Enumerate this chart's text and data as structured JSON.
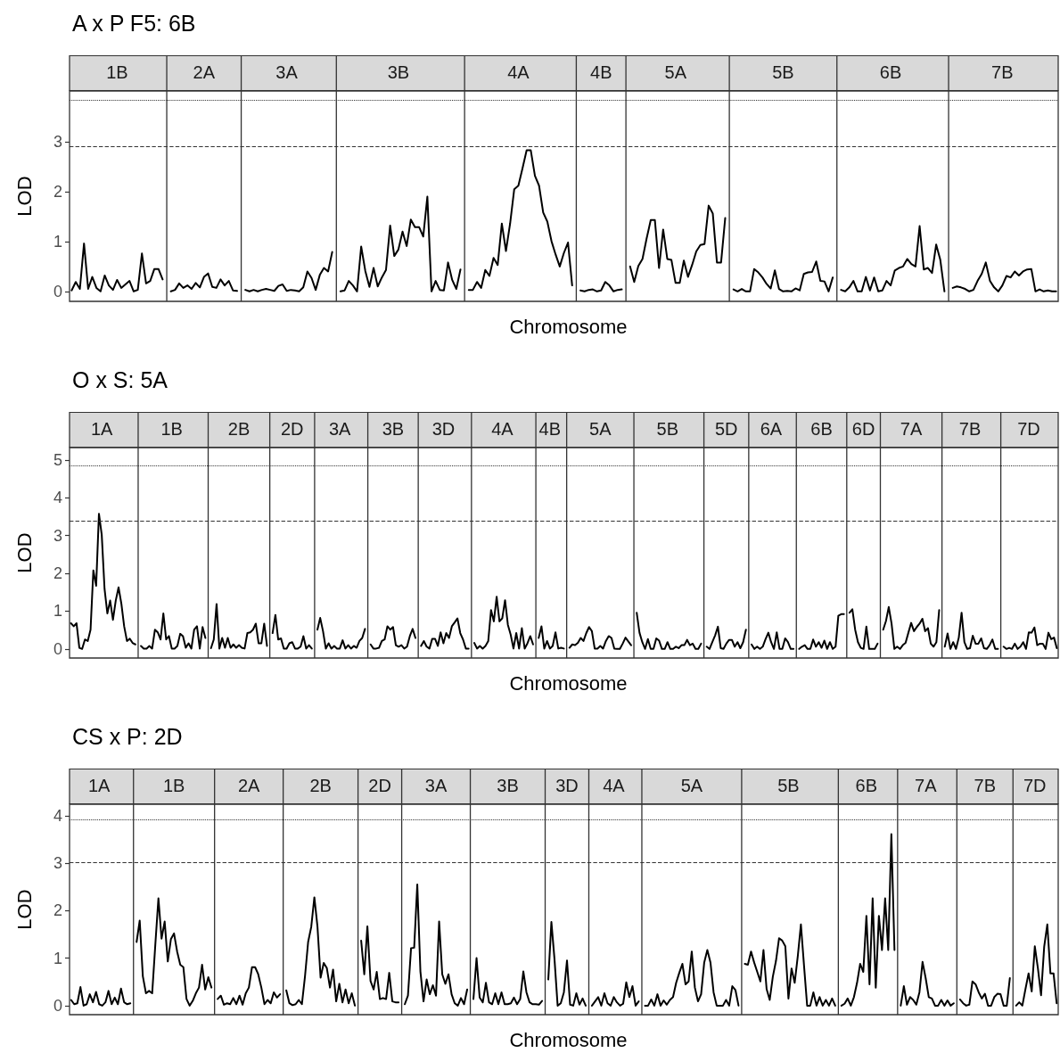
{
  "chart_data": [
    {
      "type": "line",
      "title": "A x P F5: 6B",
      "xlabel": "Chromosome",
      "ylabel": "LOD",
      "ylim": [
        -0.2,
        4.02
      ],
      "yticks": [
        0,
        1,
        2,
        3
      ],
      "ref_lines": [
        {
          "axis": "y",
          "value": 2.91,
          "line_style": "dashed",
          "color": "#333333"
        },
        {
          "axis": "y",
          "value": 3.84,
          "line_style": "dotted",
          "color": "#333333"
        }
      ],
      "categories": [
        null,
        null,
        null,
        null,
        null,
        null,
        null,
        null,
        null,
        null,
        null,
        "1B",
        null,
        null,
        null,
        null,
        null,
        null,
        null,
        null,
        null,
        null,
        null,
        null,
        null,
        null,
        null,
        null,
        null,
        null,
        null,
        null,
        "2A",
        null,
        null,
        null,
        null,
        null,
        null,
        null,
        null,
        null,
        null,
        null,
        null,
        null,
        null,
        null,
        null,
        null,
        null,
        null,
        "3A",
        null,
        null,
        null,
        null,
        null,
        null,
        null,
        null,
        null,
        null,
        null,
        null,
        null,
        null,
        null,
        null,
        null,
        null,
        null,
        null,
        null,
        null,
        null,
        null,
        null,
        null,
        "3B",
        null,
        null,
        null,
        null,
        null,
        null,
        null,
        null,
        null,
        null,
        null,
        null,
        null,
        null,
        null,
        null,
        null,
        null,
        null,
        null,
        null,
        null,
        null,
        null,
        null,
        null,
        null,
        null,
        "4A",
        null,
        null,
        null,
        null,
        null,
        null,
        null,
        null,
        null,
        null,
        null,
        null,
        null,
        null,
        null,
        null,
        null,
        null,
        null,
        "4B",
        null,
        null,
        null,
        null,
        null,
        null,
        null,
        null,
        null,
        null,
        null,
        null,
        null,
        null,
        null,
        null,
        null,
        "5A",
        null,
        null,
        null,
        null,
        null,
        null,
        null,
        null,
        null,
        null,
        null,
        null,
        null,
        null,
        null,
        null,
        null,
        null,
        null,
        null,
        null,
        null,
        null,
        null,
        null,
        "5B",
        null,
        null,
        null,
        null,
        null,
        null,
        null,
        null,
        null,
        null,
        null,
        null,
        null,
        null,
        null,
        null,
        null,
        null,
        null,
        null,
        null,
        null,
        null,
        null,
        null,
        "6B",
        null,
        null,
        null,
        null,
        null,
        null,
        null,
        null,
        null,
        null,
        null,
        null,
        null,
        null,
        null,
        null,
        null,
        null,
        null,
        null,
        null,
        null,
        null,
        null,
        null,
        null,
        "7B",
        null,
        null,
        null,
        null,
        null,
        null,
        null,
        null,
        null,
        null,
        null,
        null,
        null
      ],
      "color": "#000000",
      "values": [
        0.02,
        0.19,
        0.05,
        0.96,
        0.05,
        0.29,
        0.07,
        0,
        0.32,
        0.12,
        0.03,
        0.23,
        0.07,
        0.14,
        0.21,
        0,
        0.03,
        0.76,
        0.16,
        0.21,
        0.45,
        0.45,
        0.24,
        null,
        0,
        0.03,
        0.16,
        0.07,
        0.12,
        0.05,
        0.17,
        0.08,
        0.29,
        0.36,
        0.09,
        0.07,
        0.24,
        0.12,
        0.21,
        0.02,
        0.01,
        null,
        0.03,
        0,
        0.03,
        0,
        0.03,
        0.05,
        0.03,
        0.01,
        0.11,
        0.14,
        0.01,
        0.03,
        0.02,
        0,
        0.08,
        0.4,
        0.27,
        0.03,
        0.33,
        0.47,
        0.4,
        0.79,
        null,
        0,
        0.02,
        0.21,
        0.12,
        0,
        0.9,
        0.41,
        0.09,
        0.47,
        0.1,
        0.28,
        0.43,
        1.32,
        0.71,
        0.84,
        1.2,
        0.91,
        1.44,
        1.29,
        1.29,
        1.1,
        1.9,
        0,
        0.21,
        0.03,
        0.02,
        0.58,
        0.23,
        0.05,
        0.44,
        null,
        0.03,
        0.03,
        0.19,
        0.07,
        0.43,
        0.31,
        0.67,
        0.53,
        1.36,
        0.81,
        1.36,
        2.05,
        2.12,
        2.47,
        2.83,
        2.83,
        2.32,
        2.12,
        1.58,
        1.4,
        1.01,
        0.74,
        0.5,
        0.77,
        0.98,
        0.12,
        null,
        0.02,
        0,
        0.03,
        0.04,
        0,
        0.02,
        0.19,
        0.12,
        0,
        0.03,
        0.04,
        null,
        0.5,
        0.19,
        0.51,
        0.65,
        1.06,
        1.43,
        1.43,
        0.47,
        1.24,
        0.65,
        0.63,
        0.17,
        0.17,
        0.62,
        0.29,
        0.53,
        0.8,
        0.93,
        0.95,
        1.72,
        1.56,
        0.58,
        0.58,
        1.47,
        null,
        0.04,
        0,
        0.05,
        0,
        0,
        0.45,
        0.38,
        0.28,
        0.15,
        0.06,
        0.42,
        0.05,
        0,
        0.01,
        0,
        0.06,
        0.02,
        0.35,
        0.38,
        0.39,
        0.6,
        0.21,
        0.2,
        0,
        0.28,
        null,
        0.03,
        0,
        0.08,
        0.21,
        0,
        0,
        0.29,
        0.02,
        0.28,
        0,
        0.02,
        0.21,
        0.12,
        0.42,
        0.47,
        0.5,
        0.65,
        0.55,
        0.5,
        1.31,
        0.44,
        0.47,
        0.37,
        0.94,
        0.63,
        0,
        null,
        0.07,
        0.1,
        0.08,
        0.05,
        0,
        0.03,
        0.21,
        0.35,
        0.58,
        0.21,
        0.08,
        0,
        0.12,
        0.31,
        0.28,
        0.4,
        0.32,
        0.4,
        0.44,
        0.45,
        0,
        0.04,
        0,
        0.02,
        0,
        0
      ]
    },
    {
      "type": "line",
      "title": "O x S: 5A",
      "xlabel": "Chromosome",
      "ylabel": "LOD",
      "ylim": [
        -0.24,
        5.33
      ],
      "yticks": [
        0,
        1,
        2,
        3,
        4,
        5
      ],
      "ref_lines": [
        {
          "axis": "y",
          "value": 3.39,
          "line_style": "dashed",
          "color": "#333333"
        },
        {
          "axis": "y",
          "value": 4.86,
          "line_style": "dotted",
          "color": "#333333"
        }
      ],
      "categories": [
        null,
        null,
        null,
        null,
        null,
        null,
        null,
        null,
        null,
        null,
        null,
        "1A",
        null,
        null,
        null,
        null,
        null,
        null,
        null,
        null,
        null,
        null,
        null,
        null,
        null,
        null,
        null,
        null,
        null,
        null,
        null,
        null,
        null,
        null,
        null,
        null,
        "1B",
        null,
        null,
        null,
        null,
        null,
        null,
        null,
        null,
        null,
        null,
        null,
        null,
        null,
        null,
        null,
        null,
        null,
        null,
        null,
        null,
        null,
        null,
        null,
        "2B",
        null,
        null,
        null,
        null,
        null,
        null,
        null,
        null,
        null,
        null,
        null,
        null,
        null,
        null,
        null,
        null,
        null,
        null,
        "2D",
        null,
        null,
        null,
        null,
        null,
        null,
        null,
        null,
        null,
        null,
        null,
        null,
        null,
        null,
        null,
        null,
        "3A",
        null,
        null,
        null,
        null,
        null,
        null,
        null,
        null,
        null,
        null,
        null,
        null,
        null,
        null,
        null,
        null,
        null,
        null,
        "3B",
        null,
        null,
        null,
        null,
        null,
        null,
        null,
        null,
        null,
        null,
        null,
        null,
        null,
        null,
        null,
        null,
        null,
        "3D",
        null,
        null,
        null,
        null,
        null,
        null,
        null,
        null,
        null,
        null,
        null,
        null,
        null,
        null,
        null,
        null,
        null,
        null,
        null,
        null,
        "4A",
        null,
        null,
        null,
        null,
        null,
        null,
        null,
        null,
        null,
        null,
        null,
        null,
        null,
        null,
        null,
        null,
        "4B",
        null,
        null,
        null,
        null,
        null,
        null,
        null,
        null,
        null,
        null,
        null,
        null,
        null,
        null,
        null,
        null,
        null,
        "5A",
        null,
        null,
        null,
        null,
        null,
        null,
        null,
        null,
        null,
        null,
        null,
        null,
        null,
        null,
        null,
        null,
        null,
        null,
        null,
        null,
        null,
        null,
        null,
        "5B",
        null,
        null,
        null,
        null,
        null,
        null,
        null,
        null,
        null,
        null,
        null,
        null,
        null,
        null,
        null,
        null,
        null,
        null,
        null,
        null,
        "5D",
        null,
        null,
        null,
        null,
        null,
        null,
        null,
        null,
        null,
        null,
        null,
        null,
        null,
        null,
        null,
        "6A",
        null,
        null,
        null,
        null,
        null,
        null,
        null,
        null,
        null,
        null,
        null,
        null,
        null,
        null,
        null,
        null,
        null,
        "6B",
        null,
        null,
        null,
        null,
        null,
        null,
        null,
        null,
        null,
        null,
        null,
        null,
        null,
        null,
        "6D",
        null,
        null,
        null,
        null,
        null,
        null,
        null,
        null,
        null,
        null,
        null,
        null,
        null,
        null,
        null,
        null,
        "7A",
        null,
        null,
        null,
        null,
        null,
        null,
        null,
        null,
        null,
        null,
        null,
        null,
        null,
        null,
        null,
        null,
        null,
        null,
        null,
        null,
        "7B",
        null,
        null,
        null,
        null,
        null,
        null,
        null,
        null,
        null,
        null,
        null,
        null,
        null,
        null,
        null,
        null,
        null,
        null,
        null,
        null,
        "7D",
        null,
        null,
        null,
        null,
        null,
        null,
        null,
        null,
        null,
        null
      ],
      "color": "#000000",
      "values": [
        0.68,
        0.6,
        0.68,
        0.03,
        0,
        0.25,
        0.21,
        0.51,
        2.08,
        1.67,
        3.58,
        3.02,
        1.59,
        0.94,
        1.28,
        0.77,
        1.28,
        1.63,
        1.2,
        0.6,
        0.21,
        0.27,
        0.16,
        0.12,
        null,
        0.08,
        0.01,
        0.01,
        0.08,
        0.01,
        0.51,
        0.44,
        0.25,
        0.94,
        0.25,
        0.34,
        0.01,
        0.01,
        0.08,
        0.4,
        0.34,
        0.03,
        0.15,
        0.01,
        0.51,
        0.6,
        0.01,
        0.58,
        0.29,
        null,
        0.02,
        0.25,
        1.19,
        0.01,
        0.29,
        0.03,
        0.29,
        0.03,
        0.12,
        0.03,
        0.1,
        0.03,
        0.01,
        0.42,
        0.44,
        0.51,
        0.67,
        0.15,
        0.15,
        0.67,
        0.08,
        null,
        0.42,
        0.9,
        0.25,
        0.28,
        0.01,
        0.01,
        0.15,
        0.18,
        0.01,
        0.01,
        0.06,
        0.34,
        0.01,
        0.1,
        0.01,
        null,
        0.51,
        0.82,
        0.47,
        0.01,
        0.15,
        0.01,
        0.08,
        0.01,
        0.01,
        0.23,
        0.01,
        0.1,
        0.01,
        0.08,
        0.03,
        0.21,
        0.29,
        0.53,
        null,
        0.12,
        0.01,
        0.01,
        0.03,
        0.21,
        0.25,
        0.6,
        0.51,
        0.58,
        0.1,
        0.06,
        0.1,
        0.01,
        0.06,
        0.34,
        0.53,
        0.29,
        null,
        0.08,
        0.21,
        0.06,
        0.01,
        0.27,
        0.27,
        0.08,
        0.44,
        0.15,
        0.42,
        0.29,
        0.6,
        0.7,
        0.81,
        0.42,
        0.25,
        0.01,
        0.01,
        null,
        0.16,
        0.01,
        0.08,
        0.01,
        0.08,
        0.21,
        1.03,
        0.73,
        1.38,
        0.73,
        0.81,
        1.29,
        0.64,
        0.38,
        0.01,
        0.42,
        0.01,
        0.55,
        0.01,
        0.15,
        0.34,
        0.12,
        null,
        0.29,
        0.6,
        0.01,
        0.21,
        0.01,
        0.08,
        0.44,
        0.01,
        0.03,
        0.01,
        null,
        0.03,
        0.12,
        0.1,
        0.16,
        0.29,
        0.21,
        0.42,
        0.58,
        0.47,
        0.01,
        0.01,
        0.08,
        0.01,
        0.21,
        0.34,
        0.29,
        0.01,
        0,
        0,
        0.14,
        0.3,
        0.2,
        0.1,
        null,
        0.96,
        0.43,
        0.18,
        0,
        0.26,
        0,
        0,
        0.28,
        0.22,
        0,
        0,
        0.18,
        0,
        0,
        0.06,
        0.02,
        0.1,
        0.1,
        0.24,
        0.1,
        0.14,
        0,
        0,
        0.14,
        null,
        0.06,
        0,
        0.18,
        0.36,
        0.59,
        0.02,
        0,
        0.14,
        0.24,
        0.24,
        0.06,
        0.18,
        0.02,
        0.18,
        0.51,
        null,
        0.12,
        0,
        0.06,
        0,
        0.06,
        0.26,
        0.43,
        0.18,
        0,
        0.44,
        0,
        0,
        0.28,
        0.18,
        0,
        0,
        null,
        0,
        0.06,
        0.1,
        0,
        0,
        0.25,
        0.06,
        0.18,
        0.03,
        0.22,
        0,
        0.18,
        0,
        0.06,
        0.88,
        0.92,
        0.92,
        null,
        0.96,
        1.05,
        0.51,
        0.18,
        0.03,
        0,
        0.59,
        0,
        0,
        0,
        0.14,
        null,
        0.51,
        0.74,
        1.11,
        0.67,
        0,
        0.06,
        0,
        0.1,
        0.16,
        0.43,
        0.69,
        0.47,
        0.58,
        0.67,
        0.8,
        0.47,
        0.55,
        0.14,
        0.06,
        0.18,
        1.03,
        null,
        0.06,
        0.41,
        0,
        0.18,
        0,
        0.3,
        0.96,
        0.18,
        0,
        0.02,
        0.35,
        0.14,
        0.14,
        0.28,
        0.02,
        0,
        0.1,
        0.25,
        0,
        0,
        null,
        0.06,
        0,
        0.03,
        0,
        0.14,
        0,
        0.06,
        0.18,
        0,
        0.44,
        0.43,
        0.57,
        0.1,
        0.14,
        0.14,
        0,
        0.43,
        0.26,
        0.3,
        0.02
      ]
    },
    {
      "type": "line",
      "title": "CS x P: 2D",
      "xlabel": "Chromosome",
      "ylabel": "LOD",
      "ylim": [
        -0.19,
        4.24
      ],
      "yticks": [
        0,
        1,
        2,
        3,
        4
      ],
      "ref_lines": [
        {
          "axis": "y",
          "value": 3.01,
          "line_style": "dashed",
          "color": "#333333"
        },
        {
          "axis": "y",
          "value": 3.91,
          "line_style": "dotted",
          "color": "#333333"
        }
      ],
      "categories": [
        null,
        null,
        null,
        null,
        null,
        null,
        null,
        null,
        null,
        "1A",
        null,
        null,
        null,
        null,
        null,
        null,
        null,
        null,
        null,
        null,
        null,
        null,
        null,
        null,
        null,
        null,
        null,
        null,
        null,
        null,
        null,
        null,
        null,
        "1B",
        null,
        null,
        null,
        null,
        null,
        null,
        null,
        null,
        null,
        null,
        null,
        null,
        null,
        null,
        null,
        null,
        null,
        null,
        null,
        null,
        null,
        null,
        null,
        "2A",
        null,
        null,
        null,
        null,
        null,
        null,
        null,
        null,
        null,
        null,
        null,
        null,
        null,
        null,
        null,
        null,
        null,
        null,
        null,
        null,
        null,
        null,
        "2B",
        null,
        null,
        null,
        null,
        null,
        null,
        null,
        null,
        null,
        null,
        null,
        null,
        null,
        null,
        null,
        null,
        null,
        null,
        "2D",
        null,
        null,
        null,
        null,
        null,
        null,
        null,
        null,
        null,
        null,
        null,
        null,
        null,
        null,
        null,
        null,
        null,
        "3A",
        null,
        null,
        null,
        null,
        null,
        null,
        null,
        null,
        null,
        null,
        null,
        null,
        null,
        null,
        null,
        null,
        null,
        null,
        null,
        null,
        null,
        null,
        "3B",
        null,
        null,
        null,
        null,
        null,
        null,
        null,
        null,
        null,
        null,
        null,
        null,
        null,
        null,
        null,
        null,
        null,
        null,
        "3D",
        null,
        null,
        null,
        null,
        null,
        null,
        null,
        null,
        null,
        null,
        null,
        null,
        null,
        null,
        "4A",
        null,
        null,
        null,
        null,
        null,
        null,
        null,
        null,
        null,
        null,
        null,
        null,
        null,
        null,
        null,
        null,
        null,
        null,
        null,
        null,
        null,
        null,
        null,
        null,
        "5A",
        null,
        null,
        null,
        null,
        null,
        null,
        null,
        null,
        null,
        null,
        null,
        null,
        null,
        null,
        null,
        null,
        null,
        null,
        null,
        null,
        null,
        null,
        null,
        null,
        null,
        null,
        null,
        null,
        null,
        null,
        "5B",
        null,
        null,
        null,
        null,
        null,
        null,
        null,
        null,
        null,
        null,
        null,
        null,
        null,
        null,
        null,
        null,
        null,
        null,
        null,
        null,
        null,
        null,
        null,
        null,
        "6B",
        null,
        null,
        null,
        null,
        null,
        null,
        null,
        null,
        null,
        null,
        null,
        null,
        null,
        null,
        null,
        null,
        null,
        null,
        "7A",
        null,
        null,
        null,
        null,
        null,
        null,
        null,
        null,
        null,
        null,
        null,
        null,
        null,
        null,
        null,
        null,
        null,
        null,
        "7B",
        null,
        null,
        null,
        null,
        null,
        null,
        null,
        null,
        null,
        null,
        null,
        null,
        null,
        null,
        null,
        "7D",
        null,
        null,
        null,
        null,
        null,
        null,
        null
      ],
      "color": "#000000",
      "values": [
        0.12,
        0.03,
        0.05,
        0.39,
        0,
        0.03,
        0.24,
        0.07,
        0.29,
        0.03,
        0,
        0.07,
        0.31,
        0.03,
        0.17,
        0.03,
        0.36,
        0.07,
        0.03,
        0.05,
        null,
        1.34,
        1.79,
        0.62,
        0.26,
        0.31,
        0.26,
        1.28,
        2.26,
        1.41,
        1.77,
        0.93,
        1.4,
        1.52,
        1.14,
        0.86,
        0.81,
        0.14,
        0,
        0.1,
        0.26,
        0.38,
        0.86,
        0.34,
        0.6,
        0.38,
        null,
        0.14,
        0.21,
        0.02,
        0.05,
        0.03,
        0.16,
        0.03,
        0.21,
        0.02,
        0.26,
        0.38,
        0.81,
        0.81,
        0.66,
        0.38,
        0.03,
        0.12,
        0.05,
        0.28,
        0.17,
        0.24,
        null,
        0.32,
        0.05,
        0.01,
        0.03,
        0.12,
        0.03,
        0.62,
        1.34,
        1.66,
        2.28,
        1.66,
        0.59,
        0.9,
        0.79,
        0.38,
        0.76,
        0.09,
        0.46,
        0.07,
        0.34,
        0.05,
        0.26,
        0,
        null,
        1.37,
        0.66,
        1.67,
        0.52,
        0.34,
        0.71,
        0.14,
        0.16,
        0.14,
        0.69,
        0.09,
        0.07,
        0.07,
        null,
        0.03,
        0.21,
        1.21,
        1.22,
        2.55,
        0.72,
        0.09,
        0.55,
        0.24,
        0.43,
        0.21,
        1.77,
        0.66,
        0.46,
        0.66,
        0.24,
        0.05,
        0,
        0.16,
        0.03,
        0.34,
        null,
        0.14,
        1,
        0.17,
        0.07,
        0.48,
        0.07,
        0.03,
        0.26,
        0.03,
        0.28,
        0.03,
        0.03,
        0.05,
        0.17,
        0.03,
        0.14,
        0.72,
        0.28,
        0.07,
        0.03,
        0.03,
        0.02,
        0.1,
        null,
        0.55,
        1.76,
        0.97,
        0,
        0.05,
        0.28,
        0.95,
        0.02,
        0,
        0.26,
        0.02,
        0.15,
        0,
        null,
        0,
        0.09,
        0.18,
        0,
        0.26,
        0.05,
        0,
        0.18,
        0.07,
        0,
        0.04,
        0.49,
        0.18,
        0.41,
        0,
        0.09,
        null,
        0,
        0,
        0.13,
        0,
        0.24,
        0,
        0.11,
        0.02,
        0.12,
        0.18,
        0.48,
        0.69,
        0.88,
        0.45,
        0.51,
        1.14,
        0.38,
        0.09,
        0.24,
        0.91,
        1.17,
        0.91,
        0.28,
        0,
        0,
        0,
        0.12,
        0,
        0.41,
        0.33,
        0,
        null,
        0.88,
        0.86,
        1.14,
        0.91,
        0.71,
        0.51,
        1.17,
        0.35,
        0.12,
        0.61,
        0.94,
        1.42,
        1.37,
        1.25,
        0.15,
        0.78,
        0.48,
        1.04,
        1.71,
        0.84,
        0,
        0,
        0.28,
        0,
        0.18,
        0,
        0.12,
        0,
        0.15,
        0,
        null,
        0,
        0.04,
        0.15,
        0,
        0.18,
        0.48,
        0.88,
        0.71,
        1.89,
        0.45,
        2.26,
        0.38,
        1.89,
        1.17,
        2.26,
        1.17,
        3.61,
        1.17,
        null,
        0,
        0.41,
        0.02,
        0.18,
        0.12,
        0.02,
        0.28,
        0.92,
        0.58,
        0.18,
        0.15,
        0,
        0,
        0.12,
        0,
        0.11,
        0,
        0.05,
        null,
        0.13,
        0.05,
        0,
        0.02,
        0.51,
        0.45,
        0.28,
        0.15,
        0.25,
        0,
        0,
        0.18,
        0.25,
        0.24,
        0,
        0,
        0.58,
        null,
        0,
        0.07,
        0,
        0.35,
        0.68,
        0.3,
        1.25,
        0.78,
        0.22,
        1.24,
        1.71,
        0.68,
        0.68,
        0.05
      ]
    }
  ]
}
